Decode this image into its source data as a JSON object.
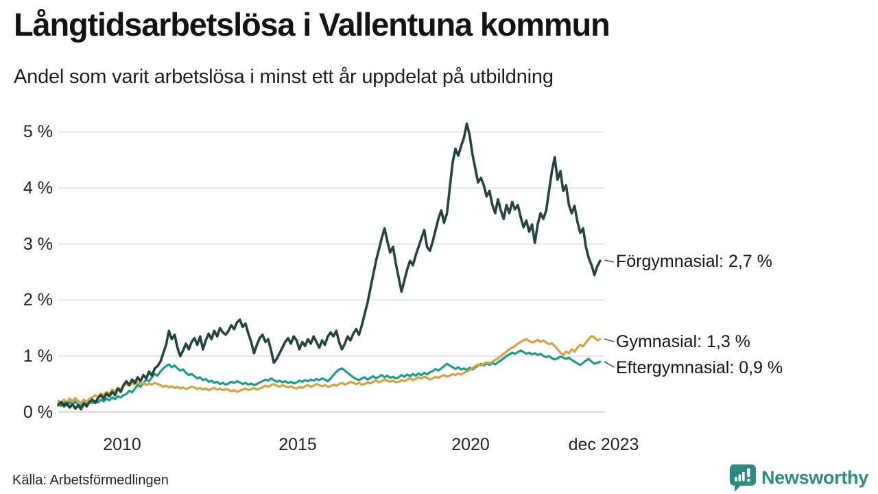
{
  "footer": {
    "source": "Källa: Arbetsförmedlingen",
    "brand": "Newsworthy"
  },
  "colors": {
    "forgymnasial": "#25453c",
    "gymnasial": "#d4a244",
    "eftergymnasial": "#1d9c88",
    "brand_teal": "#2e8b81",
    "gridline": "#e6e6ea",
    "baseline": "#cfcfd6"
  },
  "chart_data": {
    "type": "line",
    "title": "Långtidsarbetslösa i Vallentuna kommun",
    "subtitle": "Andel som varit arbetslösa i minst ett år uppdelat på utbildning",
    "unit": "%",
    "grid": "horizontal",
    "xlim": [
      2008,
      2024
    ],
    "ylim": [
      0,
      5.5
    ],
    "x_start": 2008.0,
    "x_step": 0.0833333,
    "x_frequency": "monthly",
    "x_end_label_period": "dec 2023",
    "y_tick_labels": [
      "0 %",
      "1 %",
      "2 %",
      "3 %",
      "4 %",
      "5 %"
    ],
    "y_tick_values": [
      0,
      1,
      2,
      3,
      4,
      5
    ],
    "x_tick_labels": [
      "2010",
      "2015",
      "2020",
      "dec 2023"
    ],
    "x_tick_values": [
      2010,
      2015,
      2020,
      2023.92
    ],
    "legend_position": "end-of-line-labels",
    "series": [
      {
        "name": "Eftergymnasial",
        "end_label": "Eftergymnasial: 0,9 %",
        "last_value": 0.9,
        "color": "#1d9c88",
        "values": [
          0.15,
          0.11,
          0.17,
          0.12,
          0.18,
          0.13,
          0.19,
          0.14,
          0.11,
          0.17,
          0.13,
          0.18,
          0.16,
          0.2,
          0.17,
          0.22,
          0.19,
          0.24,
          0.21,
          0.26,
          0.23,
          0.28,
          0.26,
          0.3,
          0.32,
          0.38,
          0.35,
          0.42,
          0.48,
          0.45,
          0.52,
          0.58,
          0.55,
          0.62,
          0.68,
          0.65,
          0.72,
          0.78,
          0.82,
          0.85,
          0.8,
          0.83,
          0.78,
          0.74,
          0.76,
          0.7,
          0.66,
          0.68,
          0.64,
          0.6,
          0.62,
          0.57,
          0.59,
          0.54,
          0.56,
          0.52,
          0.54,
          0.5,
          0.52,
          0.49,
          0.51,
          0.54,
          0.52,
          0.55,
          0.53,
          0.5,
          0.52,
          0.49,
          0.51,
          0.48,
          0.5,
          0.53,
          0.55,
          0.58,
          0.56,
          0.6,
          0.57,
          0.54,
          0.56,
          0.53,
          0.55,
          0.52,
          0.54,
          0.51,
          0.53,
          0.56,
          0.54,
          0.57,
          0.55,
          0.58,
          0.56,
          0.59,
          0.57,
          0.6,
          0.58,
          0.55,
          0.6,
          0.66,
          0.72,
          0.76,
          0.78,
          0.74,
          0.7,
          0.66,
          0.62,
          0.59,
          0.57,
          0.6,
          0.62,
          0.58,
          0.61,
          0.64,
          0.6,
          0.63,
          0.66,
          0.62,
          0.65,
          0.61,
          0.63,
          0.6,
          0.62,
          0.66,
          0.63,
          0.67,
          0.64,
          0.68,
          0.65,
          0.69,
          0.66,
          0.7,
          0.67,
          0.71,
          0.73,
          0.77,
          0.74,
          0.78,
          0.82,
          0.86,
          0.83,
          0.8,
          0.77,
          0.8,
          0.76,
          0.78,
          0.75,
          0.79,
          0.76,
          0.8,
          0.83,
          0.86,
          0.83,
          0.87,
          0.84,
          0.88,
          0.85,
          0.89,
          0.92,
          0.96,
          1.0,
          1.03,
          1.06,
          1.04,
          1.07,
          1.1,
          1.07,
          1.04,
          1.06,
          1.03,
          1.05,
          1.02,
          1.04,
          1.0,
          0.98,
          1.0,
          0.96,
          0.94,
          0.96,
          0.99,
          0.97,
          0.95,
          0.97,
          0.93,
          0.9,
          0.87,
          0.84,
          0.88,
          0.92,
          0.95,
          0.9,
          0.86,
          0.88,
          0.9
        ]
      },
      {
        "name": "Gymnasial",
        "end_label": "Gymnasial: 1,3 %",
        "last_value": 1.3,
        "color": "#d4a244",
        "values": [
          0.2,
          0.15,
          0.22,
          0.17,
          0.24,
          0.19,
          0.25,
          0.2,
          0.16,
          0.22,
          0.18,
          0.24,
          0.26,
          0.3,
          0.27,
          0.33,
          0.3,
          0.36,
          0.33,
          0.4,
          0.37,
          0.43,
          0.4,
          0.47,
          0.5,
          0.47,
          0.52,
          0.49,
          0.53,
          0.5,
          0.52,
          0.48,
          0.51,
          0.49,
          0.52,
          0.5,
          0.48,
          0.45,
          0.47,
          0.44,
          0.46,
          0.43,
          0.45,
          0.42,
          0.44,
          0.41,
          0.43,
          0.45,
          0.44,
          0.41,
          0.43,
          0.4,
          0.42,
          0.39,
          0.41,
          0.43,
          0.4,
          0.42,
          0.39,
          0.41,
          0.4,
          0.37,
          0.39,
          0.36,
          0.38,
          0.4,
          0.42,
          0.39,
          0.41,
          0.43,
          0.4,
          0.42,
          0.44,
          0.47,
          0.45,
          0.48,
          0.5,
          0.47,
          0.45,
          0.48,
          0.46,
          0.44,
          0.46,
          0.43,
          0.42,
          0.45,
          0.43,
          0.46,
          0.48,
          0.45,
          0.47,
          0.5,
          0.48,
          0.46,
          0.48,
          0.45,
          0.46,
          0.49,
          0.47,
          0.5,
          0.52,
          0.49,
          0.51,
          0.54,
          0.52,
          0.5,
          0.52,
          0.49,
          0.5,
          0.53,
          0.51,
          0.54,
          0.56,
          0.53,
          0.55,
          0.58,
          0.56,
          0.54,
          0.56,
          0.53,
          0.54,
          0.57,
          0.55,
          0.58,
          0.6,
          0.57,
          0.59,
          0.62,
          0.6,
          0.63,
          0.61,
          0.58,
          0.6,
          0.63,
          0.61,
          0.64,
          0.66,
          0.63,
          0.65,
          0.68,
          0.66,
          0.69,
          0.67,
          0.7,
          0.72,
          0.75,
          0.78,
          0.82,
          0.85,
          0.83,
          0.86,
          0.89,
          0.87,
          0.9,
          0.93,
          0.96,
          1.0,
          1.04,
          1.08,
          1.12,
          1.15,
          1.18,
          1.22,
          1.25,
          1.28,
          1.3,
          1.27,
          1.24,
          1.26,
          1.29,
          1.25,
          1.28,
          1.24,
          1.21,
          1.23,
          1.18,
          1.12,
          1.06,
          1.02,
          1.08,
          1.05,
          1.12,
          1.08,
          1.15,
          1.2,
          1.17,
          1.24,
          1.3,
          1.36,
          1.33,
          1.28,
          1.3
        ]
      },
      {
        "name": "Förgymnasial",
        "end_label": "Förgymnasial: 2,7 %",
        "last_value": 2.7,
        "color": "#25453c",
        "values": [
          0.12,
          0.18,
          0.1,
          0.16,
          0.08,
          0.14,
          0.06,
          0.12,
          0.05,
          0.15,
          0.1,
          0.18,
          0.22,
          0.16,
          0.25,
          0.3,
          0.24,
          0.33,
          0.28,
          0.36,
          0.3,
          0.42,
          0.36,
          0.48,
          0.55,
          0.48,
          0.58,
          0.52,
          0.62,
          0.55,
          0.66,
          0.6,
          0.72,
          0.65,
          0.78,
          0.82,
          0.9,
          1.05,
          1.2,
          1.45,
          1.3,
          1.38,
          1.15,
          1.0,
          1.1,
          1.22,
          1.12,
          1.25,
          1.32,
          1.2,
          1.35,
          1.12,
          1.28,
          1.4,
          1.3,
          1.45,
          1.35,
          1.5,
          1.42,
          1.38,
          1.45,
          1.55,
          1.48,
          1.6,
          1.65,
          1.52,
          1.58,
          1.4,
          1.25,
          1.05,
          1.2,
          1.32,
          1.38,
          1.25,
          1.3,
          1.1,
          0.88,
          0.95,
          1.05,
          1.15,
          1.25,
          1.32,
          1.22,
          1.35,
          1.28,
          1.12,
          1.25,
          1.18,
          1.3,
          1.22,
          1.35,
          1.25,
          1.15,
          1.28,
          1.2,
          1.35,
          1.42,
          1.35,
          1.45,
          1.25,
          1.12,
          1.22,
          1.35,
          1.28,
          1.4,
          1.48,
          1.38,
          1.55,
          1.75,
          1.95,
          2.2,
          2.45,
          2.7,
          2.9,
          3.1,
          3.28,
          3.05,
          2.85,
          2.95,
          2.65,
          2.4,
          2.15,
          2.35,
          2.55,
          2.7,
          2.62,
          2.8,
          2.95,
          3.1,
          3.25,
          2.95,
          2.88,
          3.05,
          3.25,
          3.45,
          3.6,
          3.38,
          3.55,
          4.0,
          4.45,
          4.7,
          4.58,
          4.75,
          4.9,
          5.15,
          4.95,
          4.6,
          4.35,
          4.1,
          4.18,
          4.05,
          3.85,
          3.95,
          3.7,
          3.55,
          3.8,
          3.6,
          3.45,
          3.7,
          3.55,
          3.75,
          3.62,
          3.7,
          3.48,
          3.3,
          3.42,
          3.22,
          3.35,
          3.02,
          3.35,
          3.55,
          3.45,
          3.6,
          3.95,
          4.3,
          4.55,
          4.15,
          4.3,
          3.95,
          4.05,
          3.7,
          3.55,
          3.68,
          3.4,
          3.2,
          3.28,
          2.95,
          2.75,
          2.62,
          2.45,
          2.6,
          2.7
        ]
      }
    ],
    "source": "Källa: Arbetsförmedlingen"
  }
}
